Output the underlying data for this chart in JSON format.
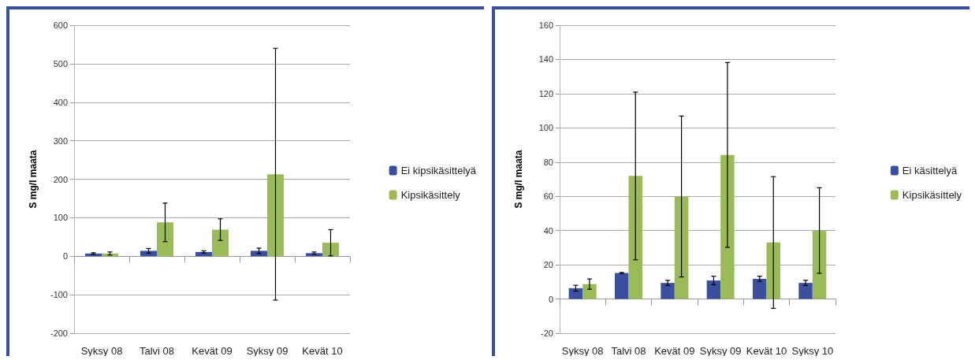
{
  "chart_data": [
    {
      "type": "bar",
      "ylabel": "S mg/l maata",
      "categories": [
        "Syksy 08",
        "Talvi 08",
        "Kevät 09",
        "Syksy 09",
        "Kevät 10"
      ],
      "series": [
        {
          "name": "Ei kipsikäsittelyä",
          "color": "#3a4fa0",
          "values": [
            7,
            14,
            11,
            14,
            8
          ],
          "errors": [
            2,
            6,
            3,
            7,
            3
          ]
        },
        {
          "name": "Kipsikäsittely",
          "color": "#9bbb59",
          "values": [
            7,
            88,
            69,
            213,
            35
          ],
          "errors": [
            4,
            50,
            28,
            327,
            34
          ]
        }
      ],
      "ylim": [
        -200,
        600
      ],
      "yticks": [
        -200,
        -100,
        0,
        100,
        200,
        300,
        400,
        500,
        600
      ],
      "grid": "y",
      "legend": "right"
    },
    {
      "type": "bar",
      "ylabel": "S mg/l maata",
      "categories": [
        "Syksy 08",
        "Talvi 08",
        "Kevät 09",
        "Syksy 09",
        "Kevät 10",
        "Syksy 10"
      ],
      "series": [
        {
          "name": "Ei käsittelyä",
          "color": "#3a4fa0",
          "values": [
            6.3,
            15.2,
            9.4,
            10.8,
            11.8,
            9.4
          ],
          "errors": [
            1.7,
            0.3,
            1.5,
            2.5,
            1.5,
            1.5
          ]
        },
        {
          "name": "Kipsikäsittely",
          "color": "#9bbb59",
          "values": [
            8.7,
            71.9,
            59.9,
            84.2,
            33,
            40
          ],
          "errors": [
            3,
            49,
            47,
            54,
            38.5,
            25
          ]
        }
      ],
      "ylim": [
        -20,
        160
      ],
      "yticks": [
        -20,
        0,
        20,
        40,
        60,
        80,
        100,
        120,
        140,
        160
      ],
      "grid": "y",
      "legend": "right"
    }
  ]
}
